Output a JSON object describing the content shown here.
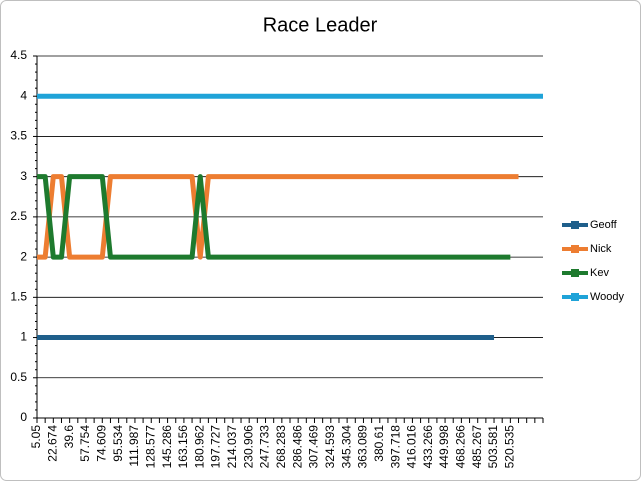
{
  "chart_data": {
    "type": "line",
    "title": "Race Leader",
    "categories": [
      "5.05",
      null,
      "22.674",
      null,
      "39.6",
      null,
      "57.754",
      null,
      "74.609",
      null,
      "95.534",
      null,
      "111.987",
      null,
      "128.577",
      null,
      "145.286",
      null,
      "163.156",
      null,
      "180.962",
      null,
      "197.727",
      null,
      "214.037",
      null,
      "230.906",
      null,
      "247.733",
      null,
      "268.283",
      null,
      "286.486",
      null,
      "307.469",
      null,
      "324.593",
      null,
      "345.304",
      null,
      "363.089",
      null,
      "380.61",
      null,
      "397.718",
      null,
      "416.016",
      null,
      "433.266",
      null,
      "449.998",
      null,
      "468.266",
      null,
      "485.267",
      null,
      "503.581",
      null,
      "520.535",
      null,
      null,
      null,
      null
    ],
    "series": [
      {
        "name": "Geoff",
        "color": "#1f5f8b",
        "values": [
          1,
          1,
          1,
          1,
          1,
          1,
          1,
          1,
          1,
          1,
          1,
          1,
          1,
          1,
          1,
          1,
          1,
          1,
          1,
          1,
          1,
          1,
          1,
          1,
          1,
          1,
          1,
          1,
          1,
          1,
          1,
          1,
          1,
          1,
          1,
          1,
          1,
          1,
          1,
          1,
          1,
          1,
          1,
          1,
          1,
          1,
          1,
          1,
          1,
          1,
          1,
          1,
          1,
          1,
          1,
          1,
          1,
          null,
          null,
          null,
          null,
          null,
          null
        ]
      },
      {
        "name": "Nick",
        "color": "#ed7d31",
        "values": [
          2,
          2,
          3,
          3,
          2,
          2,
          2,
          2,
          2,
          3,
          3,
          3,
          3,
          3,
          3,
          3,
          3,
          3,
          3,
          3,
          2,
          3,
          3,
          3,
          3,
          3,
          3,
          3,
          3,
          3,
          3,
          3,
          3,
          3,
          3,
          3,
          3,
          3,
          3,
          3,
          3,
          3,
          3,
          3,
          3,
          3,
          3,
          3,
          3,
          3,
          3,
          3,
          3,
          3,
          3,
          3,
          3,
          3,
          3,
          3,
          null,
          null,
          null
        ]
      },
      {
        "name": "Kev",
        "color": "#1e7a2e",
        "values": [
          3,
          3,
          2,
          2,
          3,
          3,
          3,
          3,
          3,
          2,
          2,
          2,
          2,
          2,
          2,
          2,
          2,
          2,
          2,
          2,
          3,
          2,
          2,
          2,
          2,
          2,
          2,
          2,
          2,
          2,
          2,
          2,
          2,
          2,
          2,
          2,
          2,
          2,
          2,
          2,
          2,
          2,
          2,
          2,
          2,
          2,
          2,
          2,
          2,
          2,
          2,
          2,
          2,
          2,
          2,
          2,
          2,
          2,
          2,
          null,
          null,
          null,
          null
        ]
      },
      {
        "name": "Woody",
        "color": "#1fa3d8",
        "values": [
          4,
          4,
          4,
          4,
          4,
          4,
          4,
          4,
          4,
          4,
          4,
          4,
          4,
          4,
          4,
          4,
          4,
          4,
          4,
          4,
          4,
          4,
          4,
          4,
          4,
          4,
          4,
          4,
          4,
          4,
          4,
          4,
          4,
          4,
          4,
          4,
          4,
          4,
          4,
          4,
          4,
          4,
          4,
          4,
          4,
          4,
          4,
          4,
          4,
          4,
          4,
          4,
          4,
          4,
          4,
          4,
          4,
          4,
          4,
          4,
          4,
          4,
          4
        ]
      }
    ],
    "ylim": [
      0,
      4.5
    ],
    "yticks": [
      0,
      0.5,
      1,
      1.5,
      2,
      2.5,
      3,
      3.5,
      4,
      4.5
    ],
    "grid": true,
    "legend": "right"
  }
}
